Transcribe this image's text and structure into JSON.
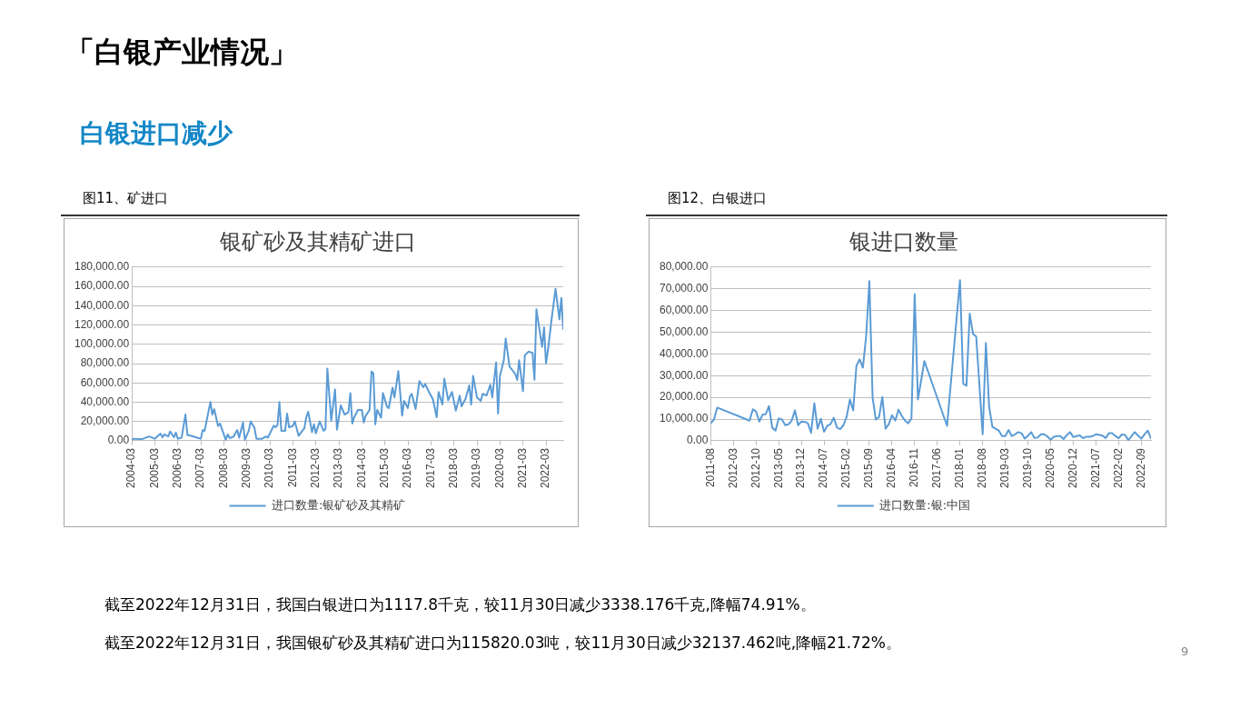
{
  "chart_data": [
    {
      "type": "line",
      "title": "银矿砂及其精矿进口",
      "subtitle": "图11、矿进口",
      "annotations": [
        "「白银产业情况」",
        "白银进口减少",
        "截至2022年12月31日，我国银矿砂及其精矿进口为115820.03吨，较11月30日减少32137.462吨,降幅21.72%。"
      ],
      "grid": "y",
      "legend": "bottom",
      "marker": "none",
      "xlim": [
        "2004-03",
        "2022-12"
      ],
      "xticks": [
        "2004-03",
        "2005-03",
        "2006-03",
        "2007-03",
        "2008-03",
        "2009-03",
        "2010-03",
        "2011-03",
        "2012-03",
        "2013-03",
        "2014-03",
        "2015-03",
        "2016-03",
        "2017-03",
        "2018-03",
        "2019-03",
        "2020-03",
        "2021-03",
        "2022-03"
      ],
      "ylim": [
        0,
        180000
      ],
      "yticks": [
        {
          "value": 0,
          "label": "0.00"
        },
        {
          "value": 20000,
          "label": "20,000.00"
        },
        {
          "value": 40000,
          "label": "40,000.00"
        },
        {
          "value": 60000,
          "label": "60,000.00"
        },
        {
          "value": 80000,
          "label": "80,000.00"
        },
        {
          "value": 100000,
          "label": "100,000.00"
        },
        {
          "value": 120000,
          "label": "120,000.00"
        },
        {
          "value": 140000,
          "label": "140,000.00"
        },
        {
          "value": 160000,
          "label": "160,000.00"
        },
        {
          "value": 180000,
          "label": "180,000.00"
        }
      ],
      "series": [
        {
          "name": "进口数量:银矿砂及其精矿",
          "color": "#5b9bd5",
          "x": [
            "2004-03",
            "2004-04",
            "2004-08",
            "2004-12",
            "2005-03",
            "2005-06",
            "2005-07",
            "2005-08",
            "2005-10",
            "2005-11",
            "2006-01",
            "2006-02",
            "2006-03",
            "2006-05",
            "2006-07",
            "2006-08",
            "2006-10",
            "2007-01",
            "2007-03",
            "2007-04",
            "2007-05",
            "2007-08",
            "2007-09",
            "2007-10",
            "2007-12",
            "2008-01",
            "2008-04",
            "2008-05",
            "2008-06",
            "2008-08",
            "2008-10",
            "2008-11",
            "2009-01",
            "2009-02",
            "2009-04",
            "2009-05",
            "2009-07",
            "2009-08",
            "2009-11",
            "2010-01",
            "2010-02",
            "2010-05",
            "2010-06",
            "2010-07",
            "2010-08",
            "2010-09",
            "2010-11",
            "2010-12",
            "2011-01",
            "2011-03",
            "2011-04",
            "2011-06",
            "2011-07",
            "2011-09",
            "2011-10",
            "2011-11",
            "2012-01",
            "2012-02",
            "2012-03",
            "2012-05",
            "2012-07",
            "2012-08",
            "2012-09",
            "2012-11",
            "2013-01",
            "2013-02",
            "2013-04",
            "2013-06",
            "2013-08",
            "2013-09",
            "2013-10",
            "2013-11",
            "2014-01",
            "2014-03",
            "2014-04",
            "2014-05",
            "2014-07",
            "2014-08",
            "2014-09",
            "2014-10",
            "2014-11",
            "2015-01",
            "2015-02",
            "2015-04",
            "2015-05",
            "2015-07",
            "2015-08",
            "2015-10",
            "2015-12",
            "2016-01",
            "2016-03",
            "2016-04",
            "2016-05",
            "2016-07",
            "2016-09",
            "2016-11",
            "2016-12",
            "2017-02",
            "2017-04",
            "2017-06",
            "2017-07",
            "2017-09",
            "2017-10",
            "2017-12",
            "2018-02",
            "2018-04",
            "2018-06",
            "2018-07",
            "2018-09",
            "2018-11",
            "2018-12",
            "2019-01",
            "2019-03",
            "2019-05",
            "2019-06",
            "2019-08",
            "2019-10",
            "2019-11",
            "2020-01",
            "2020-02",
            "2020-03",
            "2020-05",
            "2020-06",
            "2020-08",
            "2020-10",
            "2020-11",
            "2020-12",
            "2021-01",
            "2021-03",
            "2021-04",
            "2021-06",
            "2021-08",
            "2021-09",
            "2021-10",
            "2021-12",
            "2022-01",
            "2022-02",
            "2022-03",
            "2022-04",
            "2022-06",
            "2022-08",
            "2022-10",
            "2022-11",
            "2022-12"
          ],
          "values": [
            1100,
            2200,
            1500,
            4500,
            2200,
            7400,
            3700,
            6700,
            4500,
            9700,
            3700,
            8600,
            2200,
            3300,
            27200,
            6000,
            5200,
            3300,
            2200,
            11200,
            10400,
            40200,
            27200,
            32800,
            15300,
            17900,
            1100,
            6700,
            3000,
            4100,
            11200,
            3300,
            19000,
            1100,
            10400,
            20100,
            13400,
            2200,
            2200,
            4500,
            3300,
            15600,
            14100,
            16400,
            40200,
            10400,
            10400,
            28300,
            14100,
            15300,
            20100,
            5200,
            7800,
            13000,
            24500,
            30100,
            8900,
            17100,
            7800,
            20100,
            10400,
            11900,
            74800,
            20800,
            53200,
            11500,
            36800,
            27200,
            29800,
            49500,
            17900,
            24500,
            32000,
            32000,
            19000,
            26000,
            32000,
            71800,
            69900,
            17100,
            32000,
            23800,
            49500,
            35700,
            33900,
            55100,
            45000,
            72200,
            26000,
            41300,
            33900,
            45800,
            48700,
            32800,
            61800,
            55500,
            58800,
            50600,
            43200,
            24500,
            50600,
            37600,
            64400,
            42100,
            50600,
            31300,
            46900,
            35700,
            43200,
            57400,
            37600,
            67400,
            45000,
            41300,
            48700,
            46900,
            58100,
            45000,
            81200,
            28300,
            67400,
            83200,
            105800,
            76800,
            71800,
            69300,
            63000,
            83500,
            51400,
            88700,
            92400,
            91000,
            63300,
            136300,
            110300,
            97300,
            117700,
            80400,
            93400,
            126900,
            157400,
            125800,
            148000,
            115800
          ]
        }
      ]
    },
    {
      "type": "line",
      "title": "银进口数量",
      "subtitle": "图12、白银进口",
      "annotations": [
        "截至2022年12月31日，我国白银进口为1117.8千克，较11月30日减少3338.176千克,降幅74.91%。",
        "9"
      ],
      "grid": "y",
      "legend": "bottom",
      "marker": "none",
      "xlim": [
        "2011-08",
        "2022-12"
      ],
      "xticks": [
        "2011-08",
        "2012-03",
        "2012-10",
        "2013-05",
        "2013-12",
        "2014-07",
        "2015-02",
        "2015-09",
        "2016-04",
        "2016-11",
        "2017-06",
        "2018-01",
        "2018-08",
        "2019-03",
        "2019-10",
        "2020-05",
        "2020-12",
        "2021-07",
        "2022-02",
        "2022-09"
      ],
      "ylim": [
        0,
        80000
      ],
      "yticks": [
        {
          "value": 0,
          "label": "0.00"
        },
        {
          "value": 10000,
          "label": "10,000.00"
        },
        {
          "value": 20000,
          "label": "20,000.00"
        },
        {
          "value": 30000,
          "label": "30,000.00"
        },
        {
          "value": 40000,
          "label": "40,000.00"
        },
        {
          "value": 50000,
          "label": "50,000.00"
        },
        {
          "value": 60000,
          "label": "60,000.00"
        },
        {
          "value": 70000,
          "label": "70,000.00"
        },
        {
          "value": 80000,
          "label": "80,000.00"
        }
      ],
      "series": [
        {
          "name": "进口数量:银:中国",
          "color": "#5b9bd5",
          "x": [
            "2011-08",
            "2011-09",
            "2011-10",
            "2012-08",
            "2012-09",
            "2012-10",
            "2012-11",
            "2012-12",
            "2013-01",
            "2013-02",
            "2013-03",
            "2013-04",
            "2013-05",
            "2013-06",
            "2013-07",
            "2013-08",
            "2013-09",
            "2013-10",
            "2013-11",
            "2013-12",
            "2014-01",
            "2014-02",
            "2014-03",
            "2014-04",
            "2014-05",
            "2014-06",
            "2014-07",
            "2014-08",
            "2014-09",
            "2014-10",
            "2014-11",
            "2014-12",
            "2015-01",
            "2015-02",
            "2015-03",
            "2015-04",
            "2015-05",
            "2015-06",
            "2015-07",
            "2015-08",
            "2015-09",
            "2015-10",
            "2015-11",
            "2015-12",
            "2016-01",
            "2016-02",
            "2016-03",
            "2016-04",
            "2016-05",
            "2016-06",
            "2016-07",
            "2016-08",
            "2016-09",
            "2016-10",
            "2016-11",
            "2016-12",
            "2017-02",
            "2017-09",
            "2018-01",
            "2018-02",
            "2018-03",
            "2018-04",
            "2018-05",
            "2018-06",
            "2018-08",
            "2018-09",
            "2018-10",
            "2018-11",
            "2018-12",
            "2019-01",
            "2019-02",
            "2019-03",
            "2019-04",
            "2019-05",
            "2019-06",
            "2019-07",
            "2019-08",
            "2019-09",
            "2019-10",
            "2019-11",
            "2019-12",
            "2020-01",
            "2020-02",
            "2020-03",
            "2020-04",
            "2020-05",
            "2020-06",
            "2020-07",
            "2020-08",
            "2020-09",
            "2020-10",
            "2020-11",
            "2020-12",
            "2021-01",
            "2021-02",
            "2021-03",
            "2021-04",
            "2021-05",
            "2021-06",
            "2021-07",
            "2021-08",
            "2021-09",
            "2021-10",
            "2021-11",
            "2021-12",
            "2022-01",
            "2022-02",
            "2022-03",
            "2022-04",
            "2022-05",
            "2022-06",
            "2022-07",
            "2022-08",
            "2022-09",
            "2022-10",
            "2022-11",
            "2022-12"
          ],
          "values": [
            8100,
            9800,
            15300,
            9300,
            14500,
            13500,
            8900,
            12000,
            12300,
            16000,
            6000,
            4700,
            10300,
            9800,
            7200,
            7600,
            9300,
            14000,
            7200,
            8900,
            8800,
            8100,
            3700,
            17300,
            5600,
            10100,
            4200,
            6900,
            7700,
            10600,
            6100,
            5400,
            7200,
            11100,
            19000,
            14000,
            34500,
            37500,
            33700,
            48100,
            73500,
            19900,
            9800,
            11000,
            20200,
            5600,
            7700,
            11800,
            9300,
            14300,
            11500,
            9300,
            8100,
            10300,
            67500,
            19000,
            36700,
            6900,
            74000,
            26300,
            25300,
            58600,
            49300,
            48000,
            3000,
            45100,
            15700,
            6400,
            5600,
            4700,
            2200,
            2200,
            5000,
            2200,
            3000,
            4000,
            3500,
            1000,
            2400,
            4000,
            1300,
            1500,
            3000,
            3000,
            2000,
            500,
            1900,
            2200,
            2200,
            800,
            2700,
            4000,
            1700,
            2200,
            2500,
            1200,
            1900,
            1900,
            2200,
            3000,
            2700,
            2400,
            1300,
            3500,
            3500,
            2200,
            1200,
            2900,
            2700,
            300,
            2200,
            4000,
            2400,
            1000,
            3000,
            4700,
            1100
          ]
        }
      ]
    }
  ]
}
